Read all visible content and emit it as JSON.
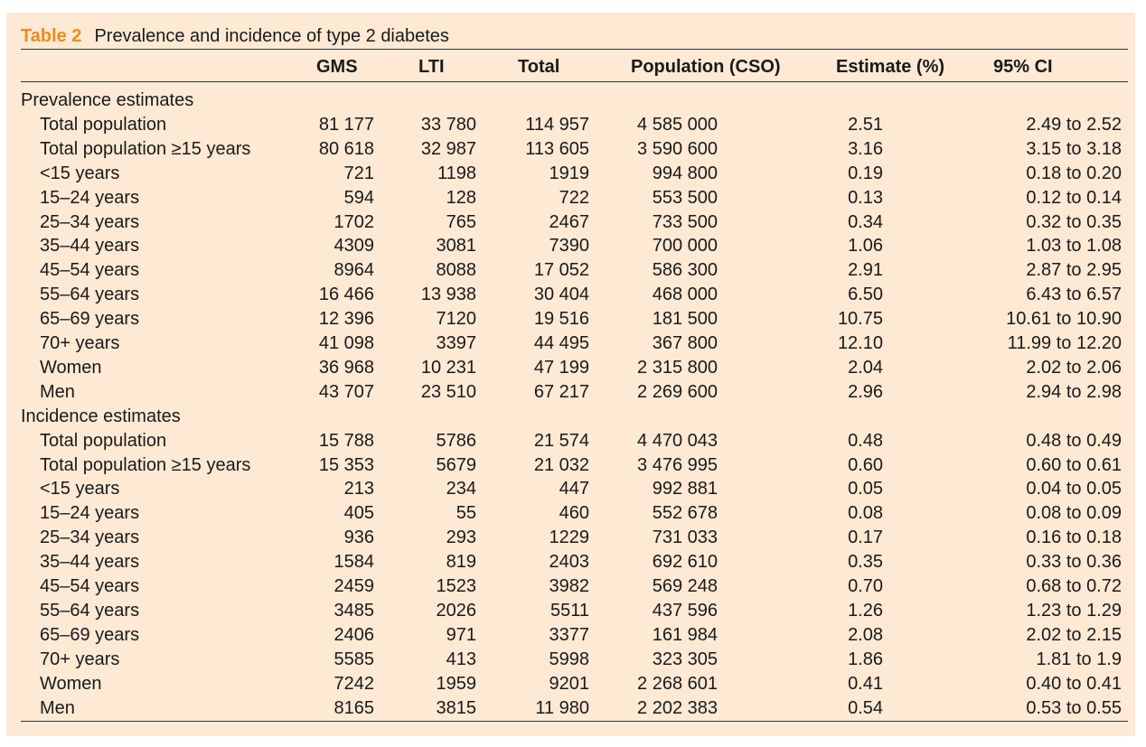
{
  "table": {
    "label": "Table 2",
    "title": "Prevalence and incidence of type 2 diabetes",
    "headers": {
      "gms": "GMS",
      "lti": "LTI",
      "total": "Total",
      "population": "Population (CSO)",
      "estimate": "Estimate (%)",
      "ci": "95% CI"
    },
    "sections": [
      {
        "title": "Prevalence estimates",
        "rows": [
          {
            "label": "Total population",
            "gms": "81 177",
            "lti": "33 780",
            "total": "114 957",
            "population": "4 585 000",
            "estimate": "2.51",
            "ci": "2.49 to 2.52"
          },
          {
            "label": "Total population ≥15 years",
            "gms": "80 618",
            "lti": "32 987",
            "total": "113 605",
            "population": "3 590 600",
            "estimate": "3.16",
            "ci": "3.15 to 3.18"
          },
          {
            "label": "<15 years",
            "gms": "721",
            "lti": "1198",
            "total": "1919",
            "population": "994 800",
            "estimate": "0.19",
            "ci": "0.18 to 0.20"
          },
          {
            "label": "15–24 years",
            "gms": "594",
            "lti": "128",
            "total": "722",
            "population": "553 500",
            "estimate": "0.13",
            "ci": "0.12 to 0.14"
          },
          {
            "label": "25–34 years",
            "gms": "1702",
            "lti": "765",
            "total": "2467",
            "population": "733 500",
            "estimate": "0.34",
            "ci": "0.32 to 0.35"
          },
          {
            "label": "35–44 years",
            "gms": "4309",
            "lti": "3081",
            "total": "7390",
            "population": "700 000",
            "estimate": "1.06",
            "ci": "1.03 to 1.08"
          },
          {
            "label": "45–54 years",
            "gms": "8964",
            "lti": "8088",
            "total": "17 052",
            "population": "586 300",
            "estimate": "2.91",
            "ci": "2.87 to 2.95"
          },
          {
            "label": "55–64 years",
            "gms": "16 466",
            "lti": "13 938",
            "total": "30 404",
            "population": "468 000",
            "estimate": "6.50",
            "ci": "6.43 to 6.57"
          },
          {
            "label": "65–69 years",
            "gms": "12 396",
            "lti": "7120",
            "total": "19 516",
            "population": "181 500",
            "estimate": "10.75",
            "ci": "10.61 to 10.90"
          },
          {
            "label": "70+ years",
            "gms": "41 098",
            "lti": "3397",
            "total": "44 495",
            "population": "367 800",
            "estimate": "12.10",
            "ci": "11.99 to 12.20"
          },
          {
            "label": "Women",
            "gms": "36 968",
            "lti": "10 231",
            "total": "47 199",
            "population": "2 315 800",
            "estimate": "2.04",
            "ci": "2.02 to 2.06"
          },
          {
            "label": "Men",
            "gms": "43 707",
            "lti": "23 510",
            "total": "67 217",
            "population": "2 269 600",
            "estimate": "2.96",
            "ci": "2.94 to 2.98"
          }
        ]
      },
      {
        "title": "Incidence estimates",
        "rows": [
          {
            "label": "Total population",
            "gms": "15 788",
            "lti": "5786",
            "total": "21 574",
            "population": "4 470 043",
            "estimate": "0.48",
            "ci": "0.48 to 0.49"
          },
          {
            "label": "Total population ≥15 years",
            "gms": "15 353",
            "lti": "5679",
            "total": "21 032",
            "population": "3 476 995",
            "estimate": "0.60",
            "ci": "0.60 to 0.61"
          },
          {
            "label": "<15 years",
            "gms": "213",
            "lti": "234",
            "total": "447",
            "population": "992 881",
            "estimate": "0.05",
            "ci": "0.04 to 0.05"
          },
          {
            "label": "15–24 years",
            "gms": "405",
            "lti": "55",
            "total": "460",
            "population": "552 678",
            "estimate": "0.08",
            "ci": "0.08 to 0.09"
          },
          {
            "label": "25–34 years",
            "gms": "936",
            "lti": "293",
            "total": "1229",
            "population": "731 033",
            "estimate": "0.17",
            "ci": "0.16 to 0.18"
          },
          {
            "label": "35–44 years",
            "gms": "1584",
            "lti": "819",
            "total": "2403",
            "population": "692 610",
            "estimate": "0.35",
            "ci": "0.33 to 0.36"
          },
          {
            "label": "45–54 years",
            "gms": "2459",
            "lti": "1523",
            "total": "3982",
            "population": "569 248",
            "estimate": "0.70",
            "ci": "0.68 to 0.72"
          },
          {
            "label": "55–64 years",
            "gms": "3485",
            "lti": "2026",
            "total": "5511",
            "population": "437 596",
            "estimate": "1.26",
            "ci": "1.23 to 1.29"
          },
          {
            "label": "65–69 years",
            "gms": "2406",
            "lti": "971",
            "total": "3377",
            "population": "161 984",
            "estimate": "2.08",
            "ci": "2.02 to 2.15"
          },
          {
            "label": "70+ years",
            "gms": "5585",
            "lti": "413",
            "total": "5998",
            "population": "323 305",
            "estimate": "1.86",
            "ci": "1.81 to 1.9"
          },
          {
            "label": "Women",
            "gms": "7242",
            "lti": "1959",
            "total": "9201",
            "population": "2 268 601",
            "estimate": "0.41",
            "ci": "0.40 to 0.41"
          },
          {
            "label": "Men",
            "gms": "8165",
            "lti": "3815",
            "total": "11 980",
            "population": "2 202 383",
            "estimate": "0.54",
            "ci": "0.53 to 0.55"
          }
        ]
      }
    ]
  },
  "colors": {
    "panel_bg": "#fde9d4",
    "label_accent": "#f08a1c"
  }
}
